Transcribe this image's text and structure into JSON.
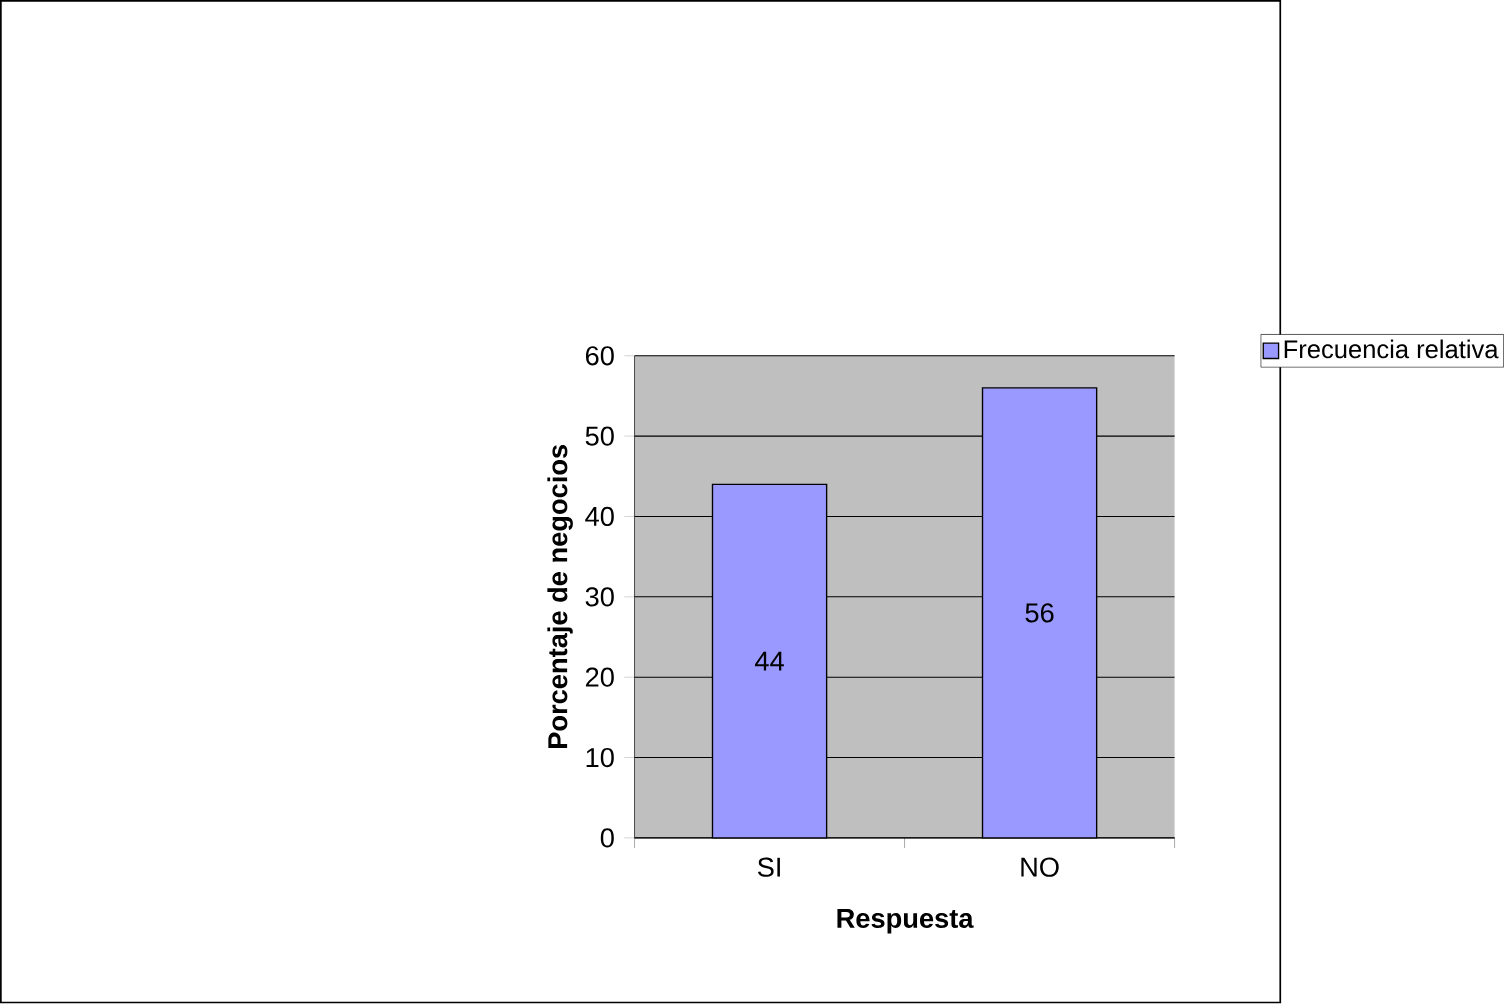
{
  "chart_data": {
    "type": "bar",
    "xlabel": "Respuesta",
    "ylabel": "Porcentaje de negocios",
    "categories": [
      "SI",
      "NO"
    ],
    "series": [
      {
        "name": "Frecuencia relativa",
        "color": "#9999ff",
        "values": [
          44,
          56
        ]
      }
    ],
    "ylim": [
      0,
      60
    ],
    "yticks": [
      0,
      10,
      20,
      30,
      40,
      50,
      60
    ],
    "grid": "y",
    "legend": "top right",
    "data_labels": true
  }
}
